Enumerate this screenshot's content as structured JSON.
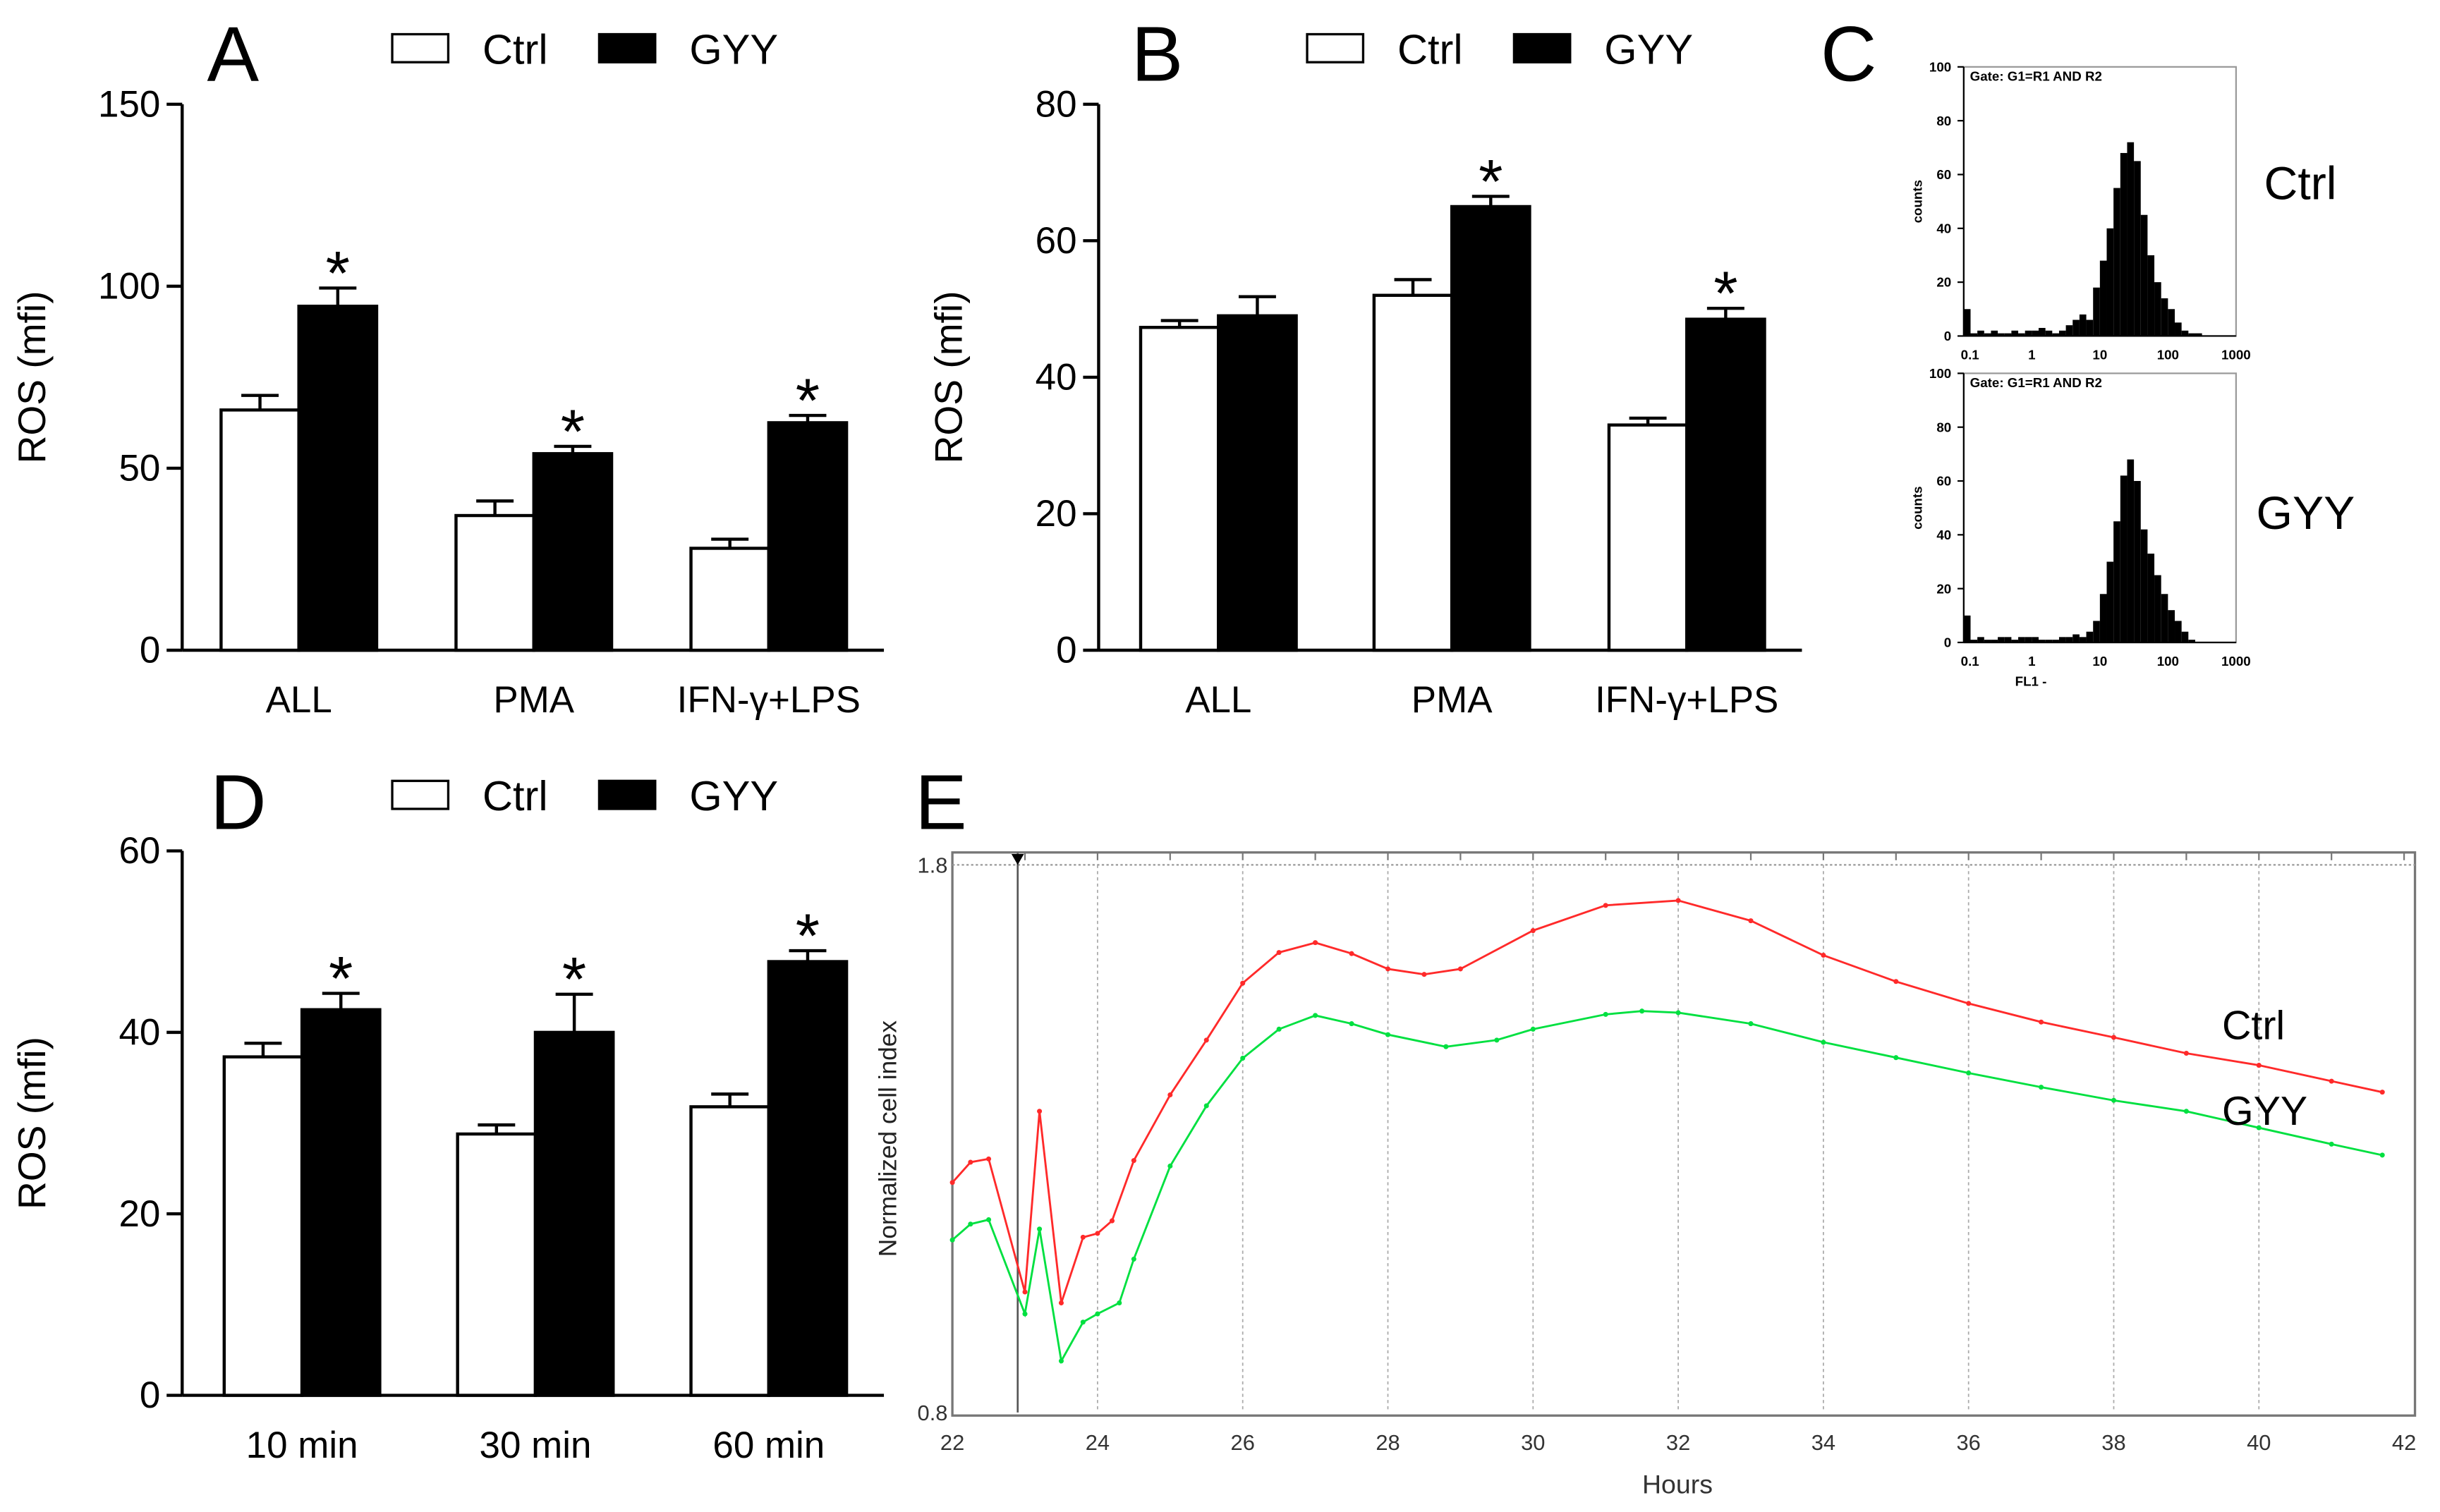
{
  "legend": {
    "ctrl": "Ctrl",
    "gyy": "GYY"
  },
  "colors": {
    "ctrl_bar": "#ffffff",
    "gyy_bar": "#000000",
    "ctrl_line": "#ff2a2a",
    "gyy_line": "#00e040"
  },
  "chart_data": [
    {
      "panel": "A",
      "type": "bar",
      "ylabel": "ROS (mfi)",
      "ylim": [
        0,
        150
      ],
      "yticks": [
        "0",
        "50",
        "100",
        "150"
      ],
      "categories": [
        "ALL",
        "PMA",
        "IFN-γ+LPS"
      ],
      "series": [
        {
          "name": "Ctrl",
          "values": [
            66,
            37,
            28
          ],
          "errors": [
            4,
            4,
            2.5
          ],
          "significant": [
            false,
            false,
            false
          ]
        },
        {
          "name": "GYY",
          "values": [
            94.5,
            54,
            62.5
          ],
          "errors": [
            5,
            2,
            2
          ],
          "significant": [
            true,
            true,
            true
          ]
        }
      ],
      "star": "*"
    },
    {
      "panel": "B",
      "type": "bar",
      "ylabel": "ROS (mfi)",
      "ylim": [
        0,
        80
      ],
      "yticks": [
        "0",
        "20",
        "40",
        "60",
        "80"
      ],
      "categories": [
        "ALL",
        "PMA",
        "IFN-γ+LPS"
      ],
      "series": [
        {
          "name": "Ctrl",
          "values": [
            47.3,
            52,
            33
          ],
          "errors": [
            1,
            2.3,
            1
          ],
          "significant": [
            false,
            false,
            false
          ]
        },
        {
          "name": "GYY",
          "values": [
            49,
            65,
            48.5
          ],
          "errors": [
            2.8,
            1.5,
            1.6
          ],
          "significant": [
            false,
            true,
            true
          ]
        }
      ],
      "star": "*"
    },
    {
      "panel": "C",
      "type": "histogram",
      "gate": "Gate: G1=R1 AND R2",
      "ylabel": "counts",
      "xlabel": "FL1 -",
      "xscale": "log",
      "xlim": [
        0.1,
        1000
      ],
      "xticks": [
        "0.1",
        "1",
        "10",
        "100",
        "1000"
      ],
      "ylim": [
        0,
        100
      ],
      "yticks": [
        "0",
        "20",
        "40",
        "60",
        "80",
        "100"
      ],
      "bins_per_decade": 10,
      "series": [
        {
          "name": "Ctrl",
          "counts": [
            10,
            1,
            2,
            1,
            2,
            1,
            1,
            2,
            1,
            2,
            2,
            3,
            2,
            1,
            2,
            4,
            6,
            8,
            6,
            18,
            28,
            40,
            55,
            68,
            72,
            65,
            45,
            30,
            20,
            14,
            10,
            5,
            2,
            1,
            1,
            0,
            0,
            0,
            0,
            0
          ]
        },
        {
          "name": "GYY",
          "counts": [
            10,
            1,
            2,
            1,
            1,
            2,
            2,
            1,
            2,
            2,
            2,
            1,
            1,
            1,
            2,
            2,
            3,
            2,
            4,
            8,
            18,
            30,
            45,
            62,
            68,
            60,
            42,
            33,
            25,
            18,
            12,
            8,
            4,
            1,
            0,
            0,
            0,
            0,
            0,
            0
          ]
        }
      ]
    },
    {
      "panel": "D",
      "type": "bar",
      "ylabel": "ROS (mfi)",
      "ylim": [
        0,
        60
      ],
      "yticks": [
        "0",
        "20",
        "40",
        "60"
      ],
      "categories": [
        "10 min",
        "30 min",
        "60 min"
      ],
      "series": [
        {
          "name": "Ctrl",
          "values": [
            37.3,
            28.8,
            31.8
          ],
          "errors": [
            1.5,
            1,
            1.4
          ],
          "significant": [
            false,
            false,
            false
          ]
        },
        {
          "name": "GYY",
          "values": [
            42.5,
            40,
            47.8
          ],
          "errors": [
            1.8,
            4.2,
            1.2
          ],
          "significant": [
            true,
            true,
            true
          ]
        }
      ],
      "star": "*"
    },
    {
      "panel": "E",
      "type": "line",
      "xlabel": "Hours",
      "ylabel": "Normalized cell index",
      "xlim": [
        22,
        42
      ],
      "ylim": [
        0.8,
        1.8
      ],
      "xticks": [
        "22",
        "24",
        "26",
        "28",
        "30",
        "32",
        "34",
        "36",
        "38",
        "40",
        "42"
      ],
      "yticks": [
        "0.8",
        "1.8"
      ],
      "marker_hour": 22.9,
      "series": [
        {
          "name": "Ctrl",
          "x": [
            22,
            22.25,
            22.5,
            23,
            23.2,
            23.5,
            23.8,
            24,
            24.2,
            24.5,
            25,
            25.5,
            26,
            26.5,
            27,
            27.5,
            28,
            28.5,
            29,
            30,
            31,
            32,
            33,
            34,
            35,
            36,
            37,
            38,
            39,
            40,
            41,
            41.7
          ],
          "y": [
            1.22,
            1.257,
            1.263,
            1.02,
            1.35,
            1.0,
            1.12,
            1.127,
            1.15,
            1.26,
            1.38,
            1.48,
            1.584,
            1.64,
            1.658,
            1.638,
            1.61,
            1.6,
            1.61,
            1.68,
            1.726,
            1.735,
            1.698,
            1.635,
            1.587,
            1.547,
            1.513,
            1.485,
            1.456,
            1.434,
            1.405,
            1.385
          ]
        },
        {
          "name": "GYY",
          "x": [
            22,
            22.25,
            22.5,
            23,
            23.2,
            23.5,
            23.8,
            24,
            24.3,
            24.5,
            25,
            25.5,
            26,
            26.5,
            27,
            27.5,
            28,
            28.8,
            29.5,
            30,
            31,
            31.5,
            32,
            33,
            34,
            35,
            36,
            37,
            38,
            39,
            40,
            41,
            41.7
          ],
          "y": [
            1.115,
            1.144,
            1.152,
            0.98,
            1.135,
            0.894,
            0.965,
            0.98,
            1.0,
            1.08,
            1.25,
            1.36,
            1.447,
            1.5,
            1.525,
            1.51,
            1.49,
            1.468,
            1.48,
            1.5,
            1.527,
            1.533,
            1.53,
            1.51,
            1.476,
            1.448,
            1.42,
            1.394,
            1.37,
            1.35,
            1.32,
            1.29,
            1.27
          ]
        }
      ]
    }
  ]
}
